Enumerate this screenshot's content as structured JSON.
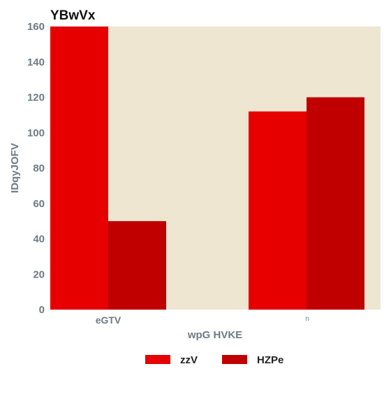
{
  "chart_data": {
    "type": "bar",
    "title": "YBwVx",
    "xlabel": "wpG HVKE",
    "ylabel": "IDqyJOFV",
    "categories": [
      "eGTV",
      "n"
    ],
    "series": [
      {
        "name": "zzV",
        "values": [
          160,
          112
        ],
        "color": "#e60000"
      },
      {
        "name": "HZPe",
        "values": [
          50,
          120
        ],
        "color": "#c00000"
      }
    ],
    "ylim": [
      0,
      160
    ],
    "yticks": [
      0,
      20,
      40,
      60,
      80,
      100,
      120,
      140,
      160
    ],
    "grid": false,
    "legend_position": "bottom",
    "plot_background": "#efe6d2"
  }
}
